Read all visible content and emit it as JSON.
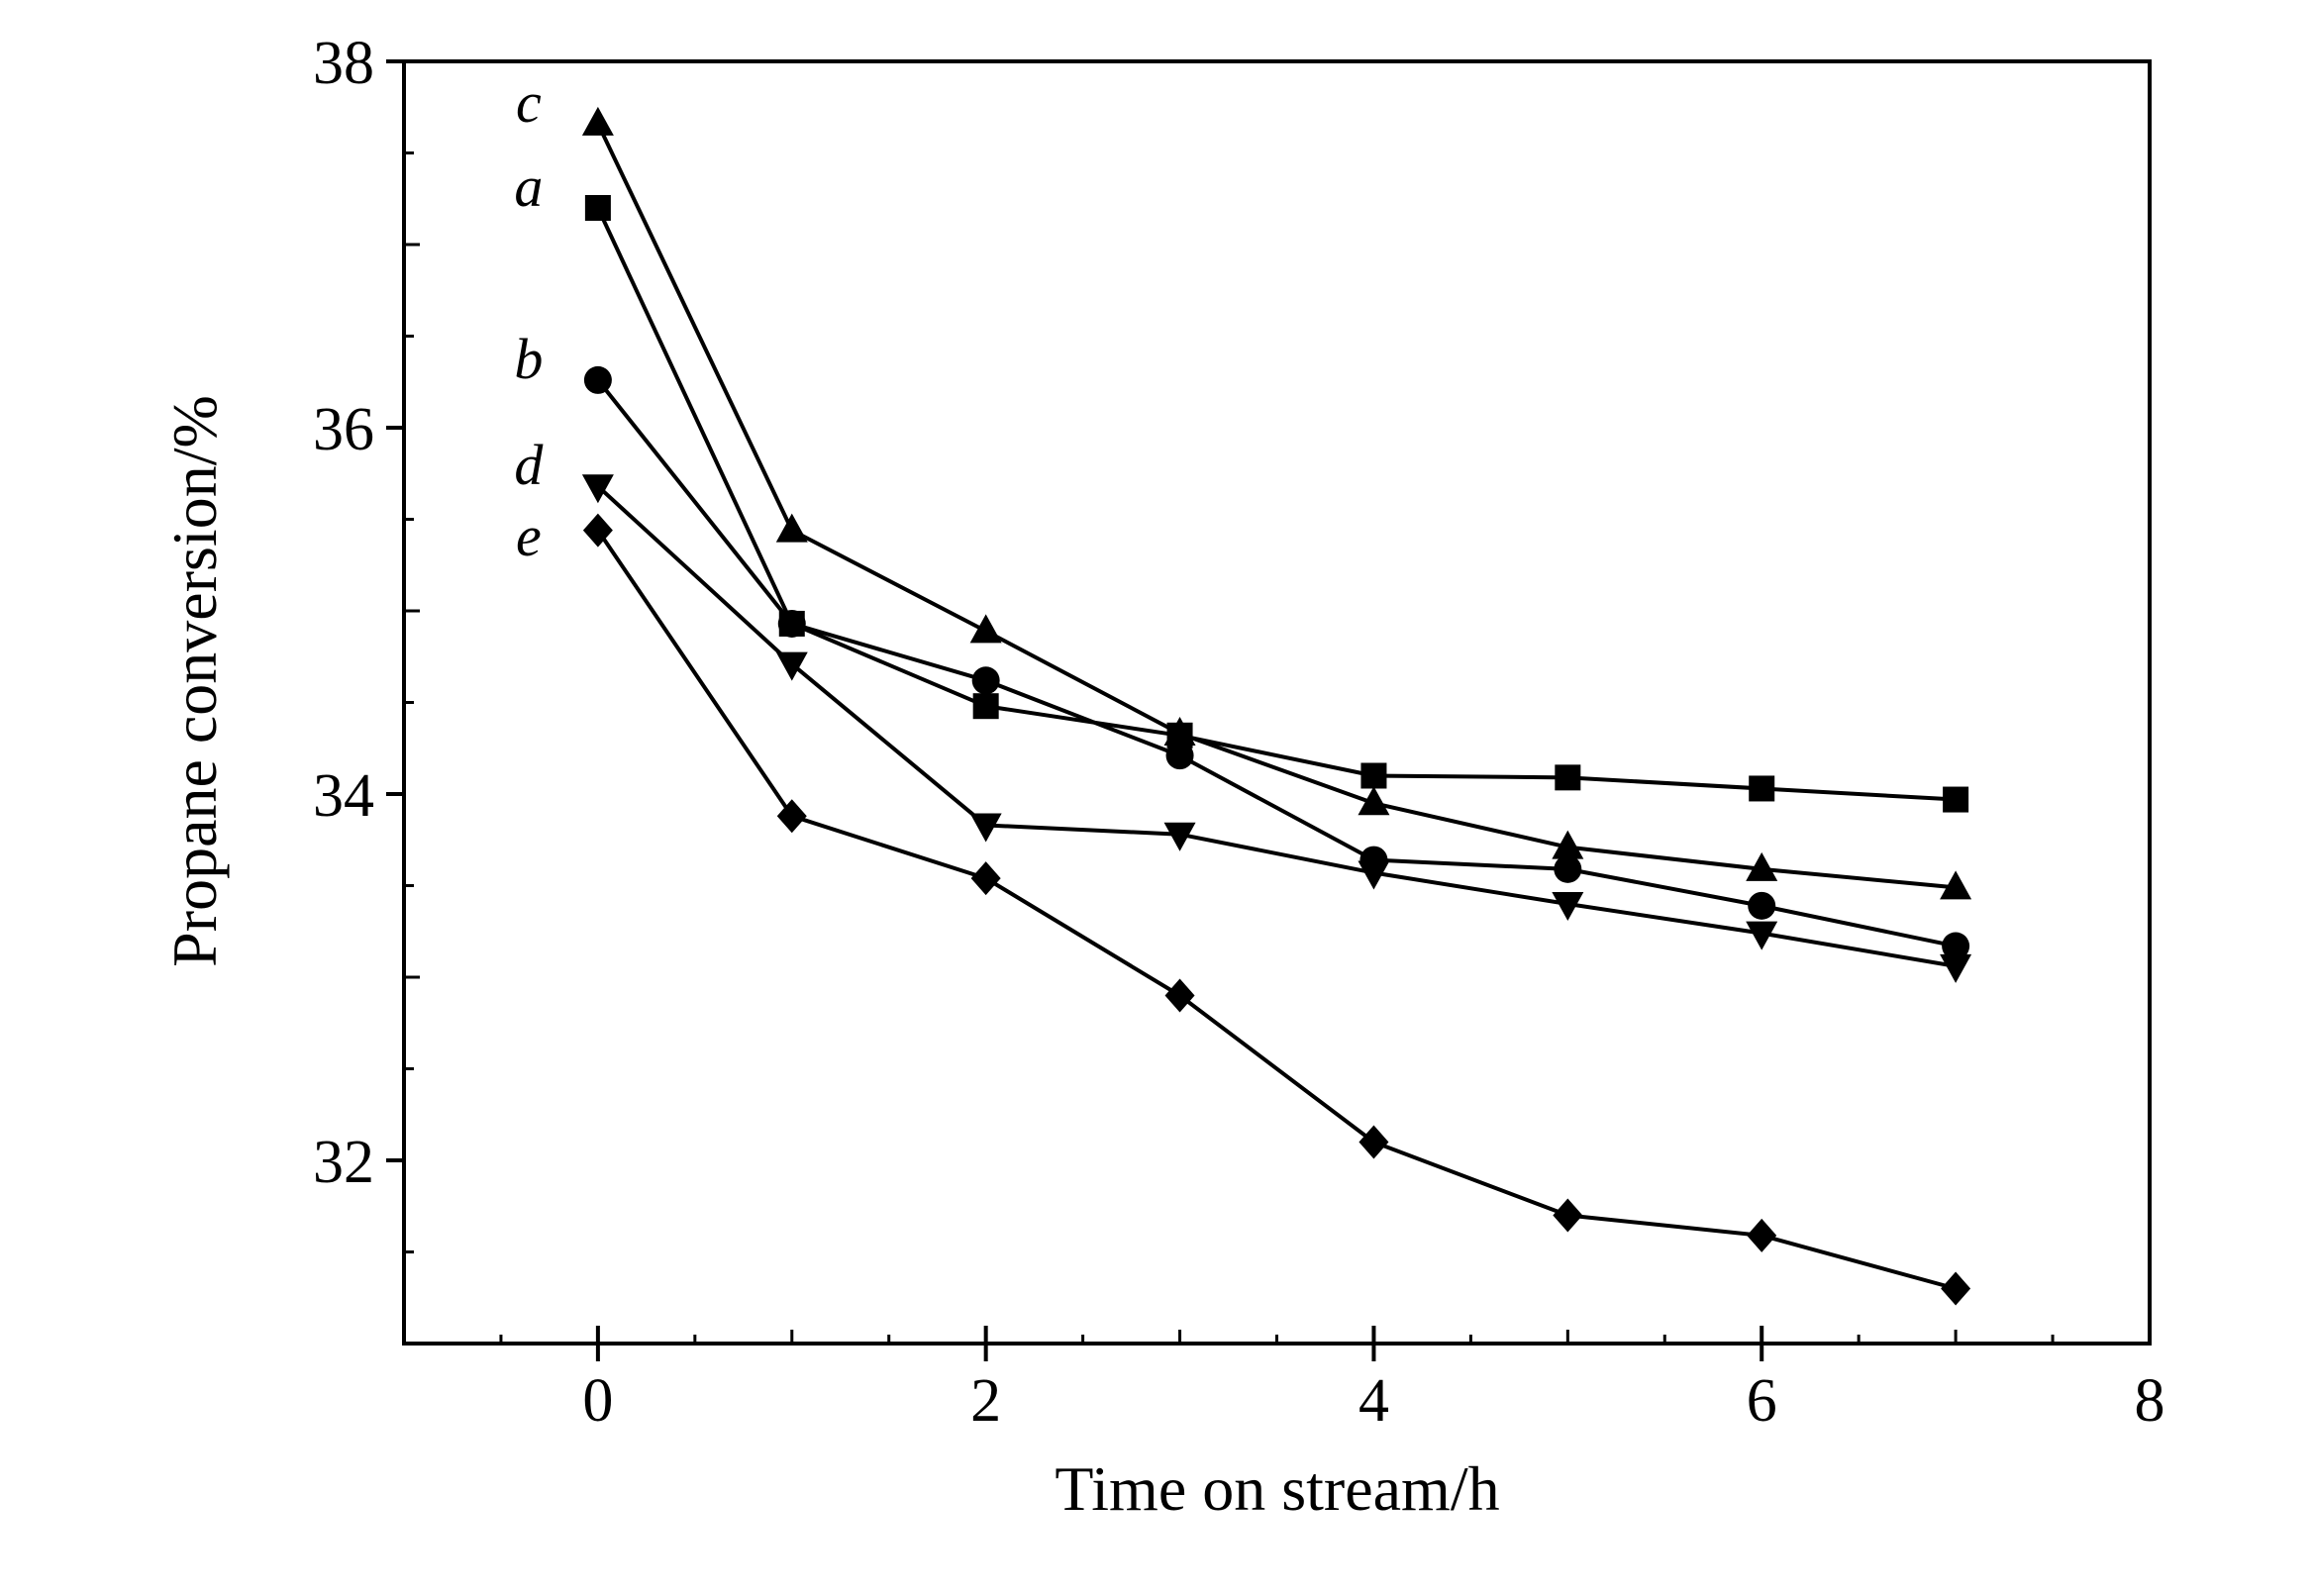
{
  "chart_data": {
    "type": "line",
    "xlabel": "Time on stream/h",
    "ylabel": "Propane conversion/%",
    "xlim": [
      -1,
      8
    ],
    "ylim": [
      31.0,
      38.0
    ],
    "x_ticks": [
      "0",
      "2",
      "4",
      "6",
      "8"
    ],
    "y_ticks": [
      "32",
      "34",
      "36",
      "38"
    ],
    "grid": false,
    "x": [
      0,
      1,
      2,
      3,
      4,
      5,
      6,
      7
    ],
    "series": [
      {
        "name": "a",
        "marker": "square",
        "values": [
          37.2,
          34.93,
          34.48,
          34.32,
          34.1,
          34.09,
          34.03,
          33.97
        ]
      },
      {
        "name": "b",
        "marker": "circle",
        "values": [
          36.26,
          34.93,
          34.62,
          34.21,
          33.64,
          33.59,
          33.39,
          33.17
        ]
      },
      {
        "name": "c",
        "marker": "triangle-up",
        "values": [
          37.66,
          35.44,
          34.89,
          34.33,
          33.95,
          33.71,
          33.59,
          33.49
        ]
      },
      {
        "name": "d",
        "marker": "triangle-down",
        "values": [
          35.68,
          34.71,
          33.83,
          33.78,
          33.57,
          33.4,
          33.24,
          33.06
        ]
      },
      {
        "name": "e",
        "marker": "diamond",
        "values": [
          35.44,
          33.88,
          33.54,
          32.9,
          32.1,
          31.7,
          31.59,
          31.3
        ]
      }
    ]
  }
}
